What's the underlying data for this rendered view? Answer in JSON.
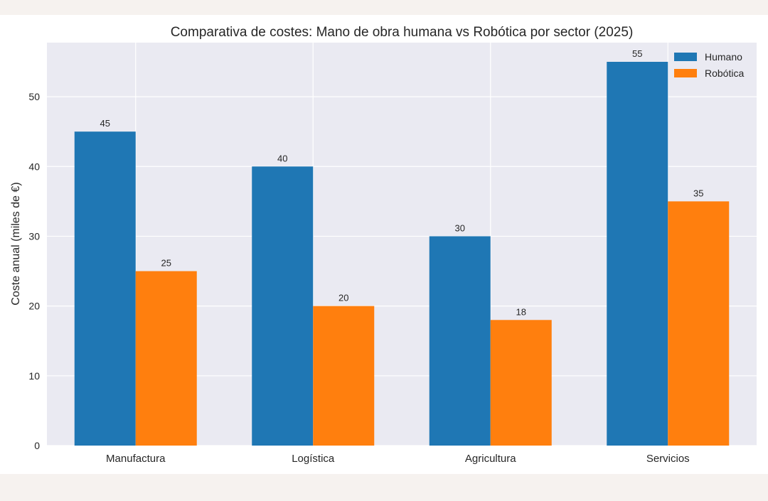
{
  "chart_data": {
    "type": "bar",
    "title": "Comparativa de costes: Mano de obra humana vs Robótica por sector (2025)",
    "xlabel": "",
    "ylabel": "Coste anual (miles de €)",
    "categories": [
      "Manufactura",
      "Logística",
      "Agricultura",
      "Servicios"
    ],
    "series": [
      {
        "name": "Humano",
        "values": [
          45,
          40,
          30,
          55
        ],
        "color": "#1f77b4"
      },
      {
        "name": "Robótica",
        "values": [
          25,
          20,
          18,
          35
        ],
        "color": "#ff7f0e"
      }
    ],
    "ylim": [
      0,
      57.75
    ],
    "yticks": [
      0,
      10,
      20,
      30,
      40,
      50
    ],
    "grid": true,
    "legend_position": "top-right",
    "colors": {
      "plot_background": "#eaeaf2",
      "grid": "#ffffff",
      "page_background": "#f6f2ef"
    }
  }
}
